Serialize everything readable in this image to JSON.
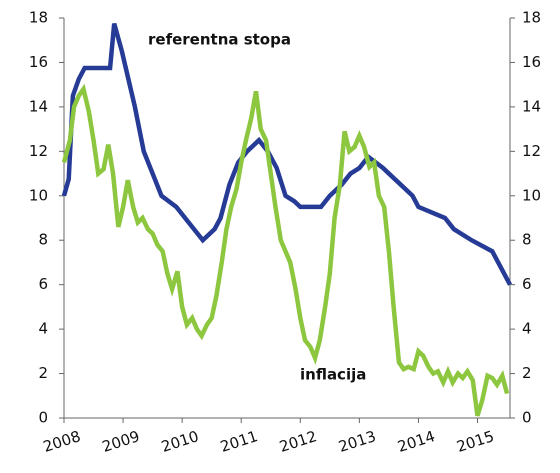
{
  "chart_data": {
    "type": "line",
    "xlim": [
      2008,
      2015.55
    ],
    "xticks": [
      2008,
      2009,
      2010,
      2011,
      2012,
      2013,
      2014,
      2015
    ],
    "ylim": [
      0,
      18
    ],
    "yticks": [
      0,
      2,
      4,
      6,
      8,
      10,
      12,
      14,
      16,
      18
    ],
    "y2lim": [
      0,
      18
    ],
    "y2ticks": [
      0,
      2,
      4,
      6,
      8,
      10,
      12,
      14,
      16,
      18
    ],
    "series": [
      {
        "name": "referentna stopa",
        "color": "#263b95",
        "x": [
          2008.0,
          2008.08,
          2008.15,
          2008.25,
          2008.35,
          2008.78,
          2008.85,
          2008.98,
          2009.2,
          2009.35,
          2009.5,
          2009.65,
          2009.9,
          2010.2,
          2010.35,
          2010.55,
          2010.65,
          2010.8,
          2010.95,
          2011.1,
          2011.3,
          2011.45,
          2011.6,
          2011.75,
          2011.9,
          2012.0,
          2012.35,
          2012.5,
          2012.7,
          2012.85,
          2013.0,
          2013.15,
          2013.4,
          2013.5,
          2013.9,
          2014.0,
          2014.45,
          2014.6,
          2014.9,
          2015.25,
          2015.35,
          2015.45,
          2015.55
        ],
        "values": [
          10,
          10.75,
          14.5,
          15.25,
          15.75,
          15.75,
          17.75,
          16.5,
          14,
          12,
          11,
          10,
          9.5,
          8.5,
          8,
          8.5,
          9,
          10.5,
          11.5,
          12,
          12.5,
          12,
          11.25,
          10,
          9.75,
          9.5,
          9.5,
          10,
          10.5,
          11,
          11.25,
          11.75,
          11.25,
          11,
          10,
          9.5,
          9,
          8.5,
          8,
          7.5,
          7,
          6.5,
          6
        ]
      },
      {
        "name": "inflacija",
        "color": "#8dc63f",
        "x": [
          2008.0,
          2008.1,
          2008.17,
          2008.25,
          2008.33,
          2008.42,
          2008.5,
          2008.58,
          2008.67,
          2008.75,
          2008.83,
          2008.92,
          2009.0,
          2009.08,
          2009.17,
          2009.25,
          2009.33,
          2009.42,
          2009.5,
          2009.58,
          2009.67,
          2009.75,
          2009.83,
          2009.92,
          2010.0,
          2010.08,
          2010.17,
          2010.25,
          2010.33,
          2010.42,
          2010.5,
          2010.58,
          2010.67,
          2010.75,
          2010.83,
          2010.92,
          2011.0,
          2011.08,
          2011.17,
          2011.25,
          2011.33,
          2011.42,
          2011.5,
          2011.58,
          2011.67,
          2011.75,
          2011.83,
          2011.92,
          2012.0,
          2012.08,
          2012.17,
          2012.25,
          2012.33,
          2012.42,
          2012.5,
          2012.58,
          2012.67,
          2012.75,
          2012.83,
          2012.92,
          2013.0,
          2013.08,
          2013.17,
          2013.25,
          2013.33,
          2013.42,
          2013.5,
          2013.58,
          2013.67,
          2013.75,
          2013.83,
          2013.92,
          2014.0,
          2014.08,
          2014.17,
          2014.25,
          2014.33,
          2014.42,
          2014.5,
          2014.58,
          2014.67,
          2014.75,
          2014.83,
          2014.92,
          2015.0,
          2015.08,
          2015.17,
          2015.25,
          2015.33,
          2015.42,
          2015.5
        ],
        "values": [
          11.5,
          12.5,
          14,
          14.5,
          14.8,
          13.8,
          12.5,
          11,
          11.2,
          12.3,
          11,
          8.6,
          9.5,
          10.7,
          9.5,
          8.8,
          9,
          8.5,
          8.3,
          7.8,
          7.5,
          6.5,
          5.8,
          6.6,
          5,
          4.2,
          4.5,
          4,
          3.7,
          4.2,
          4.5,
          5.5,
          7,
          8.5,
          9.5,
          10.3,
          11.5,
          12.5,
          13.5,
          14.7,
          13,
          12.5,
          11,
          9.5,
          8,
          7.5,
          7,
          5.8,
          4.5,
          3.5,
          3.2,
          2.7,
          3.5,
          5,
          6.5,
          9,
          10.5,
          12.9,
          12,
          12.2,
          12.7,
          12.2,
          11.3,
          11.5,
          10,
          9.5,
          7.5,
          5,
          2.5,
          2.2,
          2.3,
          2.2,
          3,
          2.8,
          2.3,
          2,
          2.1,
          1.6,
          2.1,
          1.6,
          2,
          1.8,
          2.1,
          1.7,
          0.1,
          0.8,
          1.9,
          1.8,
          1.5,
          1.9,
          1.1
        ]
      }
    ]
  }
}
